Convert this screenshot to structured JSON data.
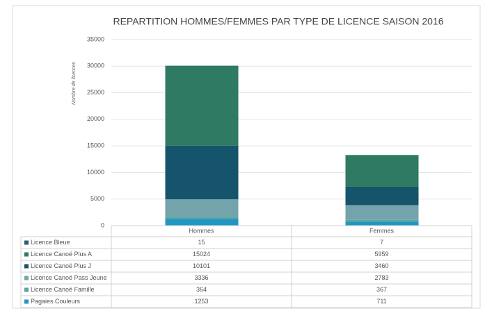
{
  "chart_data": {
    "type": "bar",
    "stacked": true,
    "title": "REPARTITION HOMMES/FEMMES PAR TYPE DE LICENCE SAISON 2016",
    "y_label": "Nombre de licences",
    "categories": [
      "Hommes",
      "Femmes"
    ],
    "series": [
      {
        "name": "Licence Bleue",
        "color": "#2f5b73",
        "values": [
          15,
          7
        ]
      },
      {
        "name": "Licence Canoë Plus A",
        "color": "#2e7a62",
        "values": [
          15024,
          5959
        ]
      },
      {
        "name": "Licence Canoë Plus J",
        "color": "#15546b",
        "values": [
          10101,
          3460
        ]
      },
      {
        "name": "Licence Canoë Pass Jeune",
        "color": "#73a3ab",
        "values": [
          3336,
          2783
        ]
      },
      {
        "name": "Licence Canoë Famille",
        "color": "#5aa79c",
        "values": [
          364,
          367
        ]
      },
      {
        "name": "Pagaies Couleurs",
        "color": "#2196c4",
        "values": [
          1253,
          711
        ]
      }
    ],
    "ylim": [
      0,
      35000
    ],
    "yticks": [
      0,
      5000,
      10000,
      15000,
      20000,
      25000,
      30000,
      35000
    ],
    "grid": true
  }
}
